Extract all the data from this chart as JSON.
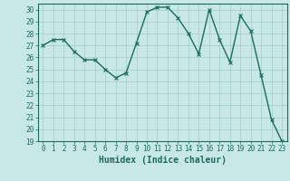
{
  "x": [
    0,
    1,
    2,
    3,
    4,
    5,
    6,
    7,
    8,
    9,
    10,
    11,
    12,
    13,
    14,
    15,
    16,
    17,
    18,
    19,
    20,
    21,
    22,
    23
  ],
  "y": [
    27.0,
    27.5,
    27.5,
    26.5,
    25.8,
    25.8,
    25.0,
    24.3,
    24.7,
    27.2,
    29.8,
    30.2,
    30.2,
    29.3,
    28.0,
    26.3,
    30.0,
    27.5,
    25.6,
    29.5,
    28.2,
    24.5,
    20.8,
    19.0
  ],
  "line_color": "#1a6b5a",
  "marker": "x",
  "markersize": 3,
  "linewidth": 1.0,
  "xlabel": "Humidex (Indice chaleur)",
  "xlabel_fontsize": 7,
  "xlim": [
    -0.5,
    23.5
  ],
  "ylim": [
    19,
    30.5
  ],
  "yticks": [
    19,
    20,
    21,
    22,
    23,
    24,
    25,
    26,
    27,
    28,
    29,
    30
  ],
  "xticks": [
    0,
    1,
    2,
    3,
    4,
    5,
    6,
    7,
    8,
    9,
    10,
    11,
    12,
    13,
    14,
    15,
    16,
    17,
    18,
    19,
    20,
    21,
    22,
    23
  ],
  "bg_color": "#c8e8e5",
  "grid_color": "#a0ccc8",
  "tick_fontsize": 5.5,
  "fig_bg_color": "#c8e8e5"
}
